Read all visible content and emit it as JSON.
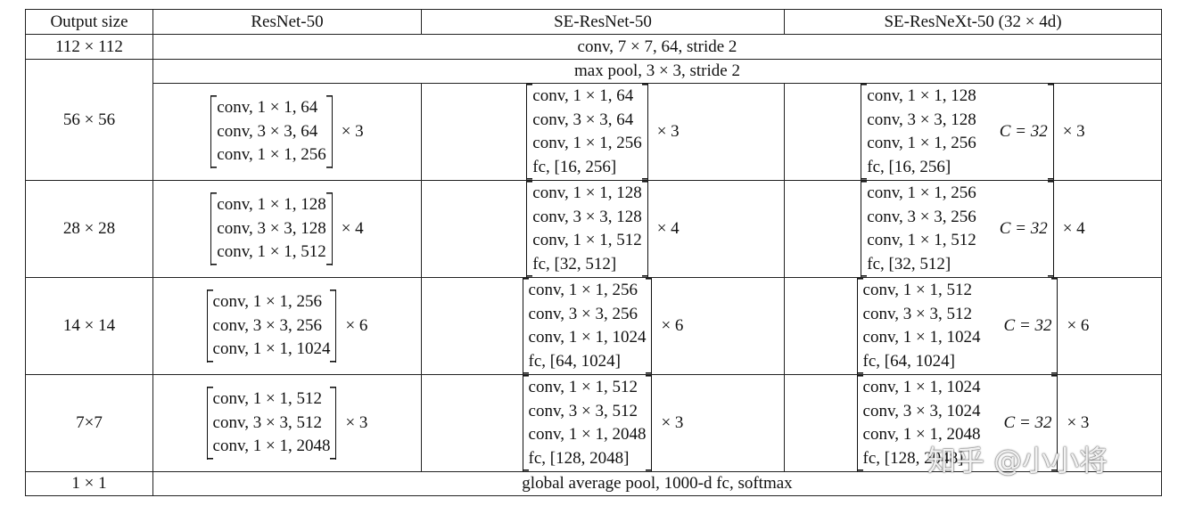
{
  "table": {
    "header": [
      "Output size",
      "ResNet-50",
      "SE-ResNet-50",
      "SE-ResNeXt-50 (32 × 4d)"
    ],
    "rows": [
      {
        "size": "112 × 112",
        "shared": "conv, 7 × 7, 64, stride 2"
      },
      {
        "size": "56 × 56",
        "shared": "max pool, 3 × 3, stride 2",
        "resnet": {
          "lines": [
            "conv, 1 × 1, 64",
            "conv, 3 × 3, 64",
            "conv, 1 × 1, 256"
          ],
          "repeat": "× 3"
        },
        "se_resnet": {
          "lines": [
            "conv, 1 × 1, 64",
            "conv, 3 × 3, 64",
            "conv, 1 × 1, 256",
            "fc, [16, 256]"
          ],
          "repeat": "× 3"
        },
        "se_resnext": {
          "lines": [
            "conv, 1 × 1, 128",
            "conv, 3 × 3, 128",
            "conv, 1 × 1, 256",
            "fc, [16, 256]"
          ],
          "cardinality": "C = 32",
          "repeat": "× 3"
        }
      },
      {
        "size": "28 × 28",
        "resnet": {
          "lines": [
            "conv, 1 × 1, 128",
            "conv, 3 × 3, 128",
            "conv, 1 × 1, 512"
          ],
          "repeat": "× 4"
        },
        "se_resnet": {
          "lines": [
            "conv, 1 × 1, 128",
            "conv, 3 × 3, 128",
            "conv, 1 × 1, 512",
            "fc, [32, 512]"
          ],
          "repeat": "× 4"
        },
        "se_resnext": {
          "lines": [
            "conv, 1 × 1, 256",
            "conv, 3 × 3, 256",
            "conv, 1 × 1, 512",
            "fc, [32, 512]"
          ],
          "cardinality": "C = 32",
          "repeat": "× 4"
        }
      },
      {
        "size": "14 × 14",
        "resnet": {
          "lines": [
            "conv, 1 × 1, 256",
            "conv, 3 × 3, 256",
            "conv, 1 × 1, 1024"
          ],
          "repeat": "× 6"
        },
        "se_resnet": {
          "lines": [
            "conv, 1 × 1, 256",
            "conv, 3 × 3, 256",
            "conv, 1 × 1, 1024",
            "fc, [64, 1024]"
          ],
          "repeat": "× 6"
        },
        "se_resnext": {
          "lines": [
            "conv, 1 × 1, 512",
            "conv, 3 × 3, 512",
            "conv, 1 × 1, 1024",
            "fc, [64, 1024]"
          ],
          "cardinality": "C = 32",
          "repeat": "× 6"
        }
      },
      {
        "size": "7×7",
        "resnet": {
          "lines": [
            "conv, 1 × 1, 512",
            "conv, 3 × 3, 512",
            "conv, 1 × 1, 2048"
          ],
          "repeat": "× 3"
        },
        "se_resnet": {
          "lines": [
            "conv, 1 × 1, 512",
            "conv, 3 × 3, 512",
            "conv, 1 × 1, 2048",
            "fc, [128, 2048]"
          ],
          "repeat": "× 3"
        },
        "se_resnext": {
          "lines": [
            "conv, 1 × 1, 1024",
            "conv, 3 × 3, 1024",
            "conv, 1 × 1, 2048",
            "fc, [128, 2048]"
          ],
          "cardinality": "C = 32",
          "repeat": "× 3"
        }
      },
      {
        "size": "1 × 1",
        "shared": "global average pool, 1000-d fc, softmax"
      }
    ]
  },
  "watermark": "知乎 @小小将"
}
